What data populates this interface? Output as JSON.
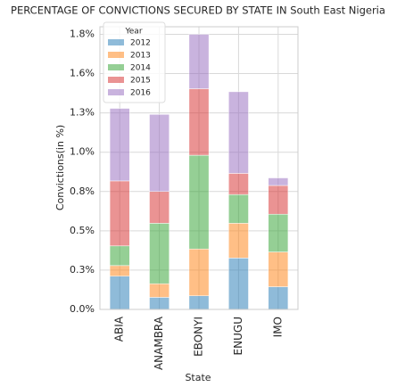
{
  "chart_data": {
    "type": "bar",
    "stacked": true,
    "title": "PERCENTAGE OF CONVICTIONS SECURED BY STATE IN South East Nigeria",
    "xlabel": "State",
    "ylabel": "Convictions(in %)",
    "categories": [
      "ABIA",
      "ANAMBRA",
      "EBONYI",
      "ENUGU",
      "IMO"
    ],
    "series": [
      {
        "name": "2012",
        "color": "#1f77b4",
        "values": [
          0.22,
          0.08,
          0.09,
          0.34,
          0.15
        ]
      },
      {
        "name": "2013",
        "color": "#ff7f0e",
        "values": [
          0.07,
          0.09,
          0.31,
          0.23,
          0.23
        ]
      },
      {
        "name": "2014",
        "color": "#2ca02c",
        "values": [
          0.13,
          0.4,
          0.62,
          0.19,
          0.25
        ]
      },
      {
        "name": "2015",
        "color": "#d62728",
        "values": [
          0.43,
          0.21,
          0.44,
          0.14,
          0.19
        ]
      },
      {
        "name": "2016",
        "color": "#9467bd",
        "values": [
          0.48,
          0.51,
          0.36,
          0.54,
          0.05
        ]
      }
    ],
    "legend_title": "Year",
    "legend": "upper left",
    "opacity": 0.5,
    "ylim": [
      0,
      1.87
    ],
    "yticks": [
      {
        "value": 0,
        "label": "0.0%"
      },
      {
        "value": 0.26,
        "label": "0.3%"
      },
      {
        "value": 0.52,
        "label": "0.5%"
      },
      {
        "value": 0.78,
        "label": "0.8%"
      },
      {
        "value": 1.04,
        "label": "1.0%"
      },
      {
        "value": 1.3,
        "label": "1.3%"
      },
      {
        "value": 1.56,
        "label": "1.6%"
      },
      {
        "value": 1.82,
        "label": "1.8%"
      }
    ],
    "grid": true
  }
}
